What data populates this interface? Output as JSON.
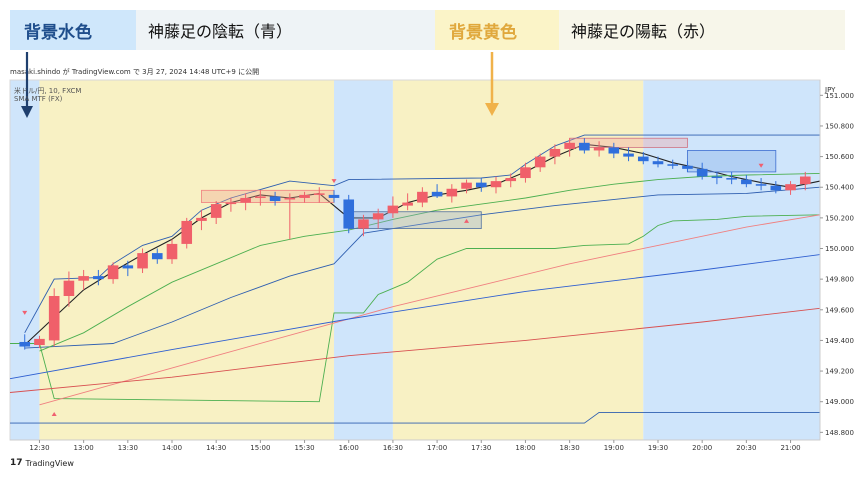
{
  "legend": {
    "blue": {
      "key": "背景水色",
      "text": "神藤足の陰転（青）"
    },
    "yellow": {
      "key": "背景黄色",
      "text": "神藤足の陽転（赤）"
    }
  },
  "header": {
    "meta": "masaki.shindo が TradingView.com で 3月 27, 2024 14:48 UTC+9 に公開",
    "symbol": "米ドル/円, 10, FXCM",
    "indicator": "SMA MTF (FX)"
  },
  "footer": {
    "brand": "TradingView",
    "brand_mark": "17"
  },
  "colors": {
    "up": "#f0606a",
    "down": "#2f6fdc",
    "bg_blue": "#cfe5fb",
    "bg_yellow": "#f8f1c4",
    "legend_blue_key": "#1f4e8c",
    "legend_yellow_key": "#e0a83c",
    "arrow_blue": "#1f3f6e",
    "arrow_yellow": "#f0b24a"
  },
  "chart_data": {
    "type": "candlestick",
    "currency": "JPY",
    "y_ticks": [
      "151.000",
      "150.800",
      "150.600",
      "150.400",
      "150.200",
      "150.000",
      "149.800",
      "149.600",
      "149.400",
      "149.200",
      "149.000",
      "148.800"
    ],
    "ylim": [
      148.75,
      151.1
    ],
    "x_ticks": [
      "12:30",
      "13:00",
      "13:30",
      "14:00",
      "14:30",
      "15:00",
      "15:30",
      "16:00",
      "16:30",
      "17:00",
      "17:30",
      "18:00",
      "18:30",
      "19:00",
      "19:30",
      "20:00",
      "20:30",
      "21:00"
    ],
    "x_start": "12:10",
    "x_end": "21:20",
    "background_zones": [
      {
        "from": "12:10",
        "to": "12:30",
        "color": "blue"
      },
      {
        "from": "12:30",
        "to": "15:50",
        "color": "yellow"
      },
      {
        "from": "15:50",
        "to": "16:30",
        "color": "blue"
      },
      {
        "from": "16:30",
        "to": "19:20",
        "color": "yellow"
      },
      {
        "from": "19:20",
        "to": "21:20",
        "color": "blue"
      }
    ],
    "candles": [
      {
        "t": "12:20",
        "o": 149.39,
        "h": 149.44,
        "l": 149.34,
        "c": 149.36
      },
      {
        "t": "12:30",
        "o": 149.37,
        "h": 149.43,
        "l": 149.35,
        "c": 149.41
      },
      {
        "t": "12:40",
        "o": 149.4,
        "h": 149.74,
        "l": 149.36,
        "c": 149.69
      },
      {
        "t": "12:50",
        "o": 149.69,
        "h": 149.85,
        "l": 149.62,
        "c": 149.79
      },
      {
        "t": "13:00",
        "o": 149.79,
        "h": 149.86,
        "l": 149.73,
        "c": 149.82
      },
      {
        "t": "13:10",
        "o": 149.82,
        "h": 149.86,
        "l": 149.76,
        "c": 149.8
      },
      {
        "t": "13:20",
        "o": 149.8,
        "h": 149.91,
        "l": 149.77,
        "c": 149.89
      },
      {
        "t": "13:30",
        "o": 149.89,
        "h": 149.92,
        "l": 149.82,
        "c": 149.87
      },
      {
        "t": "13:40",
        "o": 149.87,
        "h": 150.0,
        "l": 149.84,
        "c": 149.97
      },
      {
        "t": "13:50",
        "o": 149.97,
        "h": 150.0,
        "l": 149.9,
        "c": 149.93
      },
      {
        "t": "14:00",
        "o": 149.93,
        "h": 150.06,
        "l": 149.9,
        "c": 150.03
      },
      {
        "t": "14:10",
        "o": 150.03,
        "h": 150.2,
        "l": 150.0,
        "c": 150.18
      },
      {
        "t": "14:20",
        "o": 150.18,
        "h": 150.25,
        "l": 150.12,
        "c": 150.2
      },
      {
        "t": "14:30",
        "o": 150.2,
        "h": 150.31,
        "l": 150.16,
        "c": 150.29
      },
      {
        "t": "14:40",
        "o": 150.29,
        "h": 150.33,
        "l": 150.24,
        "c": 150.3
      },
      {
        "t": "14:50",
        "o": 150.3,
        "h": 150.36,
        "l": 150.25,
        "c": 150.33
      },
      {
        "t": "15:00",
        "o": 150.33,
        "h": 150.38,
        "l": 150.28,
        "c": 150.34
      },
      {
        "t": "15:10",
        "o": 150.34,
        "h": 150.37,
        "l": 150.28,
        "c": 150.31
      },
      {
        "t": "15:20",
        "o": 150.32,
        "h": 150.36,
        "l": 150.06,
        "c": 150.33
      },
      {
        "t": "15:30",
        "o": 150.33,
        "h": 150.37,
        "l": 150.3,
        "c": 150.35
      },
      {
        "t": "15:40",
        "o": 150.35,
        "h": 150.4,
        "l": 150.3,
        "c": 150.36
      },
      {
        "t": "15:50",
        "o": 150.35,
        "h": 150.38,
        "l": 150.3,
        "c": 150.33
      },
      {
        "t": "16:00",
        "o": 150.32,
        "h": 150.35,
        "l": 150.1,
        "c": 150.13
      },
      {
        "t": "16:10",
        "o": 150.13,
        "h": 150.22,
        "l": 150.08,
        "c": 150.19
      },
      {
        "t": "16:20",
        "o": 150.19,
        "h": 150.26,
        "l": 150.13,
        "c": 150.23
      },
      {
        "t": "16:30",
        "o": 150.23,
        "h": 150.34,
        "l": 150.2,
        "c": 150.28
      },
      {
        "t": "16:40",
        "o": 150.28,
        "h": 150.36,
        "l": 150.25,
        "c": 150.3
      },
      {
        "t": "16:50",
        "o": 150.3,
        "h": 150.4,
        "l": 150.27,
        "c": 150.37
      },
      {
        "t": "17:00",
        "o": 150.37,
        "h": 150.42,
        "l": 150.33,
        "c": 150.34
      },
      {
        "t": "17:10",
        "o": 150.34,
        "h": 150.42,
        "l": 150.3,
        "c": 150.39
      },
      {
        "t": "17:20",
        "o": 150.39,
        "h": 150.45,
        "l": 150.36,
        "c": 150.43
      },
      {
        "t": "17:30",
        "o": 150.43,
        "h": 150.46,
        "l": 150.37,
        "c": 150.4
      },
      {
        "t": "17:40",
        "o": 150.4,
        "h": 150.47,
        "l": 150.36,
        "c": 150.44
      },
      {
        "t": "17:50",
        "o": 150.44,
        "h": 150.49,
        "l": 150.4,
        "c": 150.46
      },
      {
        "t": "18:00",
        "o": 150.46,
        "h": 150.56,
        "l": 150.43,
        "c": 150.53
      },
      {
        "t": "18:10",
        "o": 150.53,
        "h": 150.62,
        "l": 150.5,
        "c": 150.6
      },
      {
        "t": "18:20",
        "o": 150.6,
        "h": 150.68,
        "l": 150.55,
        "c": 150.65
      },
      {
        "t": "18:30",
        "o": 150.65,
        "h": 150.72,
        "l": 150.6,
        "c": 150.69
      },
      {
        "t": "18:40",
        "o": 150.69,
        "h": 150.72,
        "l": 150.62,
        "c": 150.64
      },
      {
        "t": "18:50",
        "o": 150.64,
        "h": 150.7,
        "l": 150.6,
        "c": 150.66
      },
      {
        "t": "19:00",
        "o": 150.66,
        "h": 150.69,
        "l": 150.59,
        "c": 150.62
      },
      {
        "t": "19:10",
        "o": 150.62,
        "h": 150.66,
        "l": 150.57,
        "c": 150.6
      },
      {
        "t": "19:20",
        "o": 150.6,
        "h": 150.63,
        "l": 150.55,
        "c": 150.57
      },
      {
        "t": "19:30",
        "o": 150.57,
        "h": 150.6,
        "l": 150.53,
        "c": 150.55
      },
      {
        "t": "19:40",
        "o": 150.55,
        "h": 150.58,
        "l": 150.52,
        "c": 150.54
      },
      {
        "t": "19:50",
        "o": 150.54,
        "h": 150.57,
        "l": 150.5,
        "c": 150.52
      },
      {
        "t": "20:00",
        "o": 150.52,
        "h": 150.56,
        "l": 150.45,
        "c": 150.47
      },
      {
        "t": "20:10",
        "o": 150.47,
        "h": 150.5,
        "l": 150.42,
        "c": 150.46
      },
      {
        "t": "20:20",
        "o": 150.46,
        "h": 150.5,
        "l": 150.42,
        "c": 150.45
      },
      {
        "t": "20:30",
        "o": 150.45,
        "h": 150.48,
        "l": 150.4,
        "c": 150.42
      },
      {
        "t": "20:40",
        "o": 150.42,
        "h": 150.46,
        "l": 150.38,
        "c": 150.41
      },
      {
        "t": "20:50",
        "o": 150.41,
        "h": 150.44,
        "l": 150.36,
        "c": 150.38
      },
      {
        "t": "21:00",
        "o": 150.38,
        "h": 150.44,
        "l": 150.35,
        "c": 150.42
      },
      {
        "t": "21:10",
        "o": 150.42,
        "h": 150.5,
        "l": 150.38,
        "c": 150.47
      }
    ],
    "lines": [
      {
        "name": "upper-band",
        "color": "#2f5fb0",
        "points": [
          [
            "12:20",
            149.45
          ],
          [
            "12:40",
            149.8
          ],
          [
            "13:10",
            149.81
          ],
          [
            "13:20",
            149.9
          ],
          [
            "13:40",
            150.02
          ],
          [
            "14:00",
            150.08
          ],
          [
            "14:20",
            150.25
          ],
          [
            "14:40",
            150.33
          ],
          [
            "15:20",
            150.44
          ],
          [
            "15:50",
            150.41
          ],
          [
            "16:00",
            150.45
          ],
          [
            "17:30",
            150.46
          ],
          [
            "17:50",
            150.48
          ],
          [
            "18:00",
            150.55
          ],
          [
            "18:20",
            150.67
          ],
          [
            "18:40",
            150.74
          ],
          [
            "21:20",
            150.74
          ]
        ]
      },
      {
        "name": "lower-band",
        "color": "#2f5fb0",
        "points": [
          [
            "12:20",
            149.35
          ],
          [
            "12:40",
            149.36
          ],
          [
            "13:20",
            149.38
          ],
          [
            "14:00",
            149.52
          ],
          [
            "14:40",
            149.68
          ],
          [
            "15:20",
            149.82
          ],
          [
            "15:50",
            149.9
          ],
          [
            "16:10",
            150.1
          ],
          [
            "17:30",
            150.22
          ],
          [
            "18:20",
            150.28
          ],
          [
            "18:40",
            150.3
          ],
          [
            "19:30",
            150.35
          ],
          [
            "20:30",
            150.36
          ],
          [
            "21:20",
            150.4
          ]
        ]
      },
      {
        "name": "middle-line",
        "color": "#222222",
        "points": [
          [
            "12:20",
            149.37
          ],
          [
            "12:40",
            149.55
          ],
          [
            "13:00",
            149.73
          ],
          [
            "13:20",
            149.85
          ],
          [
            "13:40",
            149.96
          ],
          [
            "14:00",
            150.06
          ],
          [
            "14:20",
            150.2
          ],
          [
            "14:40",
            150.3
          ],
          [
            "15:00",
            150.35
          ],
          [
            "15:20",
            150.33
          ],
          [
            "15:40",
            150.36
          ],
          [
            "16:00",
            150.2
          ],
          [
            "16:20",
            150.2
          ],
          [
            "16:40",
            150.3
          ],
          [
            "17:00",
            150.35
          ],
          [
            "17:20",
            150.38
          ],
          [
            "17:40",
            150.42
          ],
          [
            "18:00",
            150.5
          ],
          [
            "18:20",
            150.6
          ],
          [
            "18:40",
            150.68
          ],
          [
            "19:00",
            150.66
          ],
          [
            "19:20",
            150.62
          ],
          [
            "19:40",
            150.56
          ],
          [
            "20:00",
            150.52
          ],
          [
            "20:20",
            150.47
          ],
          [
            "20:40",
            150.43
          ],
          [
            "21:00",
            150.4
          ],
          [
            "21:20",
            150.44
          ]
        ]
      },
      {
        "name": "green-ma",
        "color": "#4caf50",
        "points": [
          [
            "12:30",
            149.33
          ],
          [
            "13:00",
            149.45
          ],
          [
            "13:30",
            149.62
          ],
          [
            "14:00",
            149.78
          ],
          [
            "14:30",
            149.9
          ],
          [
            "15:00",
            150.02
          ],
          [
            "15:30",
            150.08
          ],
          [
            "16:00",
            150.12
          ],
          [
            "16:30",
            150.19
          ],
          [
            "17:00",
            150.25
          ],
          [
            "17:30",
            150.29
          ],
          [
            "18:00",
            150.33
          ],
          [
            "18:30",
            150.38
          ],
          [
            "19:00",
            150.42
          ],
          [
            "19:30",
            150.45
          ],
          [
            "20:00",
            150.47
          ],
          [
            "20:30",
            150.48
          ],
          [
            "21:20",
            150.49
          ]
        ]
      },
      {
        "name": "green-step",
        "color": "#4caf50",
        "points": [
          [
            "12:10",
            149.38
          ],
          [
            "12:30",
            149.38
          ],
          [
            "12:40",
            149.02
          ],
          [
            "15:40",
            149.0
          ],
          [
            "15:50",
            149.58
          ],
          [
            "16:10",
            149.58
          ],
          [
            "16:20",
            149.7
          ],
          [
            "16:40",
            149.78
          ],
          [
            "17:00",
            149.93
          ],
          [
            "17:20",
            150.0
          ],
          [
            "18:20",
            150.0
          ],
          [
            "18:40",
            150.02
          ],
          [
            "19:10",
            150.03
          ],
          [
            "19:20",
            150.08
          ],
          [
            "19:30",
            150.15
          ],
          [
            "19:40",
            150.18
          ],
          [
            "20:10",
            150.19
          ],
          [
            "20:30",
            150.21
          ],
          [
            "21:20",
            150.22
          ]
        ]
      },
      {
        "name": "red-ma-fast",
        "color": "#f08080",
        "points": [
          [
            "12:30",
            148.98
          ],
          [
            "13:30",
            149.14
          ],
          [
            "14:30",
            149.3
          ],
          [
            "15:30",
            149.46
          ],
          [
            "16:30",
            149.62
          ],
          [
            "17:30",
            149.76
          ],
          [
            "18:30",
            149.9
          ],
          [
            "19:30",
            150.02
          ],
          [
            "20:30",
            150.14
          ],
          [
            "21:20",
            150.22
          ]
        ]
      },
      {
        "name": "red-ma-slow",
        "color": "#d85050",
        "points": [
          [
            "12:10",
            149.06
          ],
          [
            "14:00",
            149.16
          ],
          [
            "16:00",
            149.3
          ],
          [
            "18:00",
            149.4
          ],
          [
            "20:00",
            149.52
          ],
          [
            "21:20",
            149.61
          ]
        ]
      },
      {
        "name": "blue-ma",
        "color": "#2f5fd0",
        "points": [
          [
            "12:10",
            149.15
          ],
          [
            "14:00",
            149.34
          ],
          [
            "16:00",
            149.54
          ],
          [
            "18:00",
            149.72
          ],
          [
            "20:00",
            149.86
          ],
          [
            "21:20",
            149.96
          ]
        ]
      },
      {
        "name": "blue-step-low",
        "color": "#2f5fb0",
        "points": [
          [
            "12:10",
            148.86
          ],
          [
            "18:40",
            148.86
          ],
          [
            "18:50",
            148.93
          ],
          [
            "21:20",
            148.93
          ]
        ]
      }
    ],
    "markers": [
      {
        "t": "12:20",
        "y": 149.58,
        "dir": "down",
        "color": "#f06070"
      },
      {
        "t": "12:40",
        "y": 148.92,
        "dir": "up",
        "color": "#f06070"
      },
      {
        "t": "15:50",
        "y": 150.44,
        "dir": "down",
        "color": "#f06070"
      },
      {
        "t": "17:20",
        "y": 150.18,
        "dir": "up",
        "color": "#f06070"
      },
      {
        "t": "20:40",
        "y": 150.54,
        "dir": "down",
        "color": "#f06070"
      }
    ]
  }
}
